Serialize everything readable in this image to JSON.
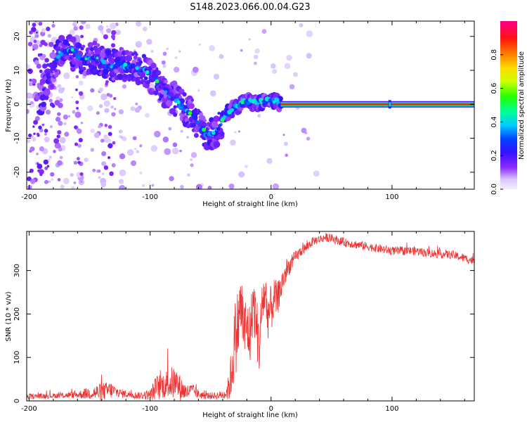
{
  "title": "S148.2023.066.00.04.G23",
  "chart_data": [
    {
      "type": "heatmap",
      "name": "spectrogram",
      "xlabel": "Height of straight line (km)",
      "ylabel": "Frequency (Hz)",
      "xlim": [
        -202,
        168
      ],
      "ylim": [
        -25,
        24.5
      ],
      "xticks": [
        -200,
        -100,
        0,
        100
      ],
      "yticks": [
        -20,
        -10,
        0,
        10,
        20
      ],
      "colorbar": {
        "label": "Normalized spectral amplitude",
        "range": [
          0,
          1
        ],
        "ticks": [
          0.0,
          0.2,
          0.4,
          0.6,
          0.8
        ]
      },
      "ridge": {
        "description": "dominant frequency track (Hz) vs height (km)",
        "x": [
          -190,
          -175,
          -165,
          -155,
          -145,
          -135,
          -125,
          -115,
          -105,
          -95,
          -85,
          -75,
          -65,
          -58,
          -52,
          -45,
          -40,
          -35,
          -30,
          -25,
          -20,
          -15,
          -10,
          -5,
          0,
          5,
          10,
          20,
          50,
          100,
          150,
          168
        ],
        "y": [
          2,
          15,
          16,
          13,
          14,
          11,
          12,
          11,
          10,
          7,
          3,
          0,
          -3,
          -7,
          -9,
          -8,
          -4,
          -2,
          -1,
          0,
          1,
          0.5,
          0.5,
          1,
          1.5,
          0.5,
          0,
          0,
          0,
          0,
          0,
          0
        ]
      },
      "line": {
        "description": "steady carrier at 0 Hz",
        "x_start": 8,
        "x_end": 168,
        "y": 0
      }
    },
    {
      "type": "line",
      "name": "snr",
      "xlabel": "Height of straight line (km)",
      "ylabel": "SNR (10 * v/v)",
      "xlim": [
        -202,
        168
      ],
      "ylim": [
        0,
        390
      ],
      "xticks": [
        -200,
        -100,
        0,
        100
      ],
      "yticks": [
        0,
        100,
        200,
        300
      ],
      "series": [
        {
          "name": "SNR",
          "color": "#ee3333",
          "x": [
            -202,
            -180,
            -160,
            -150,
            -140,
            -133,
            -125,
            -110,
            -100,
            -95,
            -90,
            -85,
            -80,
            -75,
            -70,
            -65,
            -60,
            -55,
            -45,
            -38,
            -35,
            -33,
            -30,
            -27,
            -25,
            -22,
            -20,
            -17,
            -15,
            -12,
            -10,
            -7,
            -5,
            -3,
            0,
            3,
            5,
            8,
            10,
            13,
            15,
            20,
            25,
            30,
            35,
            40,
            45,
            50,
            60,
            70,
            80,
            90,
            100,
            110,
            120,
            130,
            140,
            150,
            160,
            168
          ],
          "y": [
            10,
            12,
            14,
            18,
            20,
            25,
            18,
            12,
            14,
            30,
            35,
            40,
            42,
            30,
            20,
            25,
            15,
            12,
            12,
            15,
            30,
            60,
            140,
            180,
            220,
            160,
            170,
            150,
            230,
            180,
            120,
            230,
            250,
            200,
            210,
            240,
            230,
            260,
            280,
            300,
            310,
            330,
            345,
            355,
            368,
            372,
            376,
            374,
            365,
            360,
            355,
            350,
            345,
            345,
            345,
            340,
            338,
            336,
            328,
            322
          ],
          "noise_amplitude": [
            6,
            6,
            8,
            15,
            22,
            20,
            10,
            8,
            12,
            30,
            30,
            35,
            40,
            30,
            18,
            15,
            10,
            8,
            8,
            12,
            30,
            60,
            90,
            90,
            80,
            80,
            75,
            75,
            70,
            70,
            70,
            60,
            60,
            60,
            55,
            45,
            40,
            35,
            30,
            25,
            20,
            15,
            12,
            12,
            10,
            10,
            10,
            10,
            10,
            10,
            10,
            10,
            10,
            10,
            10,
            10,
            10,
            10,
            10,
            10
          ]
        }
      ]
    }
  ]
}
